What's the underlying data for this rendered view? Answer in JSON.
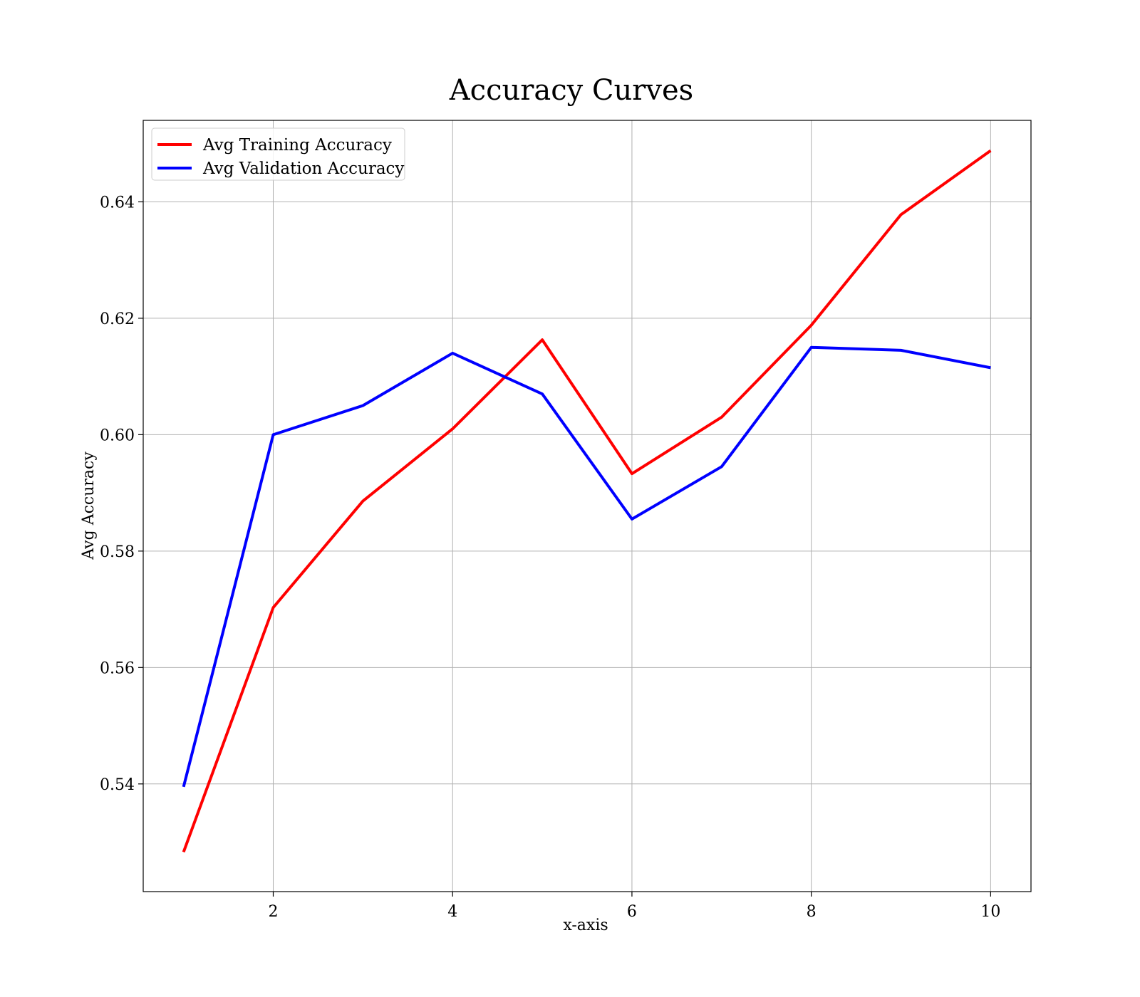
{
  "chart_data": {
    "type": "line",
    "title": "Accuracy Curves",
    "xlabel": "x-axis",
    "ylabel": "Avg Accuracy",
    "xlim": [
      0.55,
      10.45
    ],
    "ylim": [
      0.5215,
      0.654
    ],
    "x_ticks": [
      2,
      4,
      6,
      8,
      10
    ],
    "x_tick_labels": [
      "2",
      "4",
      "6",
      "8",
      "10"
    ],
    "y_ticks": [
      0.54,
      0.56,
      0.58,
      0.6,
      0.62,
      0.64
    ],
    "y_tick_labels": [
      "0.54",
      "0.56",
      "0.58",
      "0.60",
      "0.62",
      "0.64"
    ],
    "grid": true,
    "legend_position": "top-left",
    "x": [
      1,
      2,
      3,
      4,
      5,
      6,
      7,
      8,
      9,
      10
    ],
    "series": [
      {
        "name": "Avg Training Accuracy",
        "color": "#ff0000",
        "values": [
          0.5283,
          0.5703,
          0.5886,
          0.601,
          0.6163,
          0.5933,
          0.603,
          0.6188,
          0.6378,
          0.6488
        ]
      },
      {
        "name": "Avg Validation Accuracy",
        "color": "#0000ff",
        "values": [
          0.5395,
          0.6,
          0.605,
          0.614,
          0.607,
          0.5855,
          0.5945,
          0.615,
          0.6145,
          0.6115
        ]
      }
    ]
  }
}
